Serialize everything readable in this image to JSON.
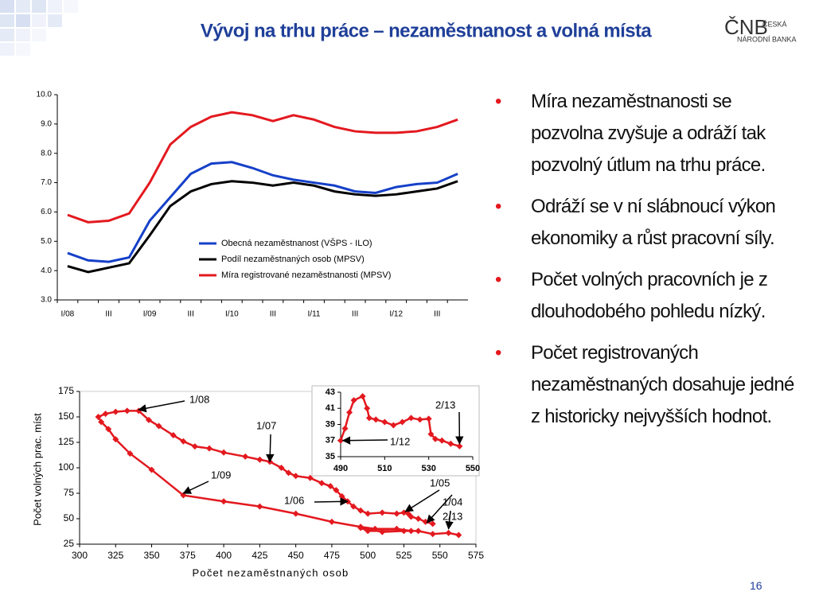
{
  "header": {
    "title": "Vývoj na trhu práce – nezaměstnanost a volná místa",
    "logo": "ČNB",
    "logo_line1": "ČESKÁ",
    "logo_line2": "NÁRODNÍ BANKA"
  },
  "chart_data": [
    {
      "type": "line",
      "categories": [
        "I/08",
        null,
        "III",
        null,
        "I/09",
        null,
        "III",
        null,
        "I/10",
        null,
        "III",
        null,
        "I/11",
        null,
        "III",
        null,
        "I/12",
        null,
        "III",
        null
      ],
      "series": [
        {
          "name": "Obecná nezaměstnanost (VŠPS - ILO)",
          "color": "#1540c8",
          "values": [
            4.6,
            4.35,
            4.3,
            4.45,
            5.7,
            6.5,
            7.3,
            7.65,
            7.7,
            7.5,
            7.25,
            7.1,
            7.0,
            6.9,
            6.7,
            6.65,
            6.85,
            6.95,
            7.0,
            7.3
          ]
        },
        {
          "name": "Podíl nezaměstnaných osob (MPSV)",
          "color": "#000000",
          "values": [
            4.15,
            3.95,
            4.1,
            4.25,
            5.2,
            6.2,
            6.7,
            6.95,
            7.05,
            7.0,
            6.9,
            7.0,
            6.9,
            6.7,
            6.6,
            6.55,
            6.6,
            6.7,
            6.8,
            7.05
          ]
        },
        {
          "name": "Míra registrované nezaměstnanosti (MPSV)",
          "color": "#e3191f",
          "values": [
            5.9,
            5.65,
            5.7,
            5.95,
            7.0,
            8.3,
            8.9,
            9.25,
            9.4,
            9.3,
            9.1,
            9.3,
            9.15,
            8.9,
            8.75,
            8.7,
            8.7,
            8.75,
            8.9,
            9.15
          ]
        }
      ],
      "ylim": [
        3,
        10
      ],
      "yticks": [
        {
          "value": 3,
          "label": "3.0"
        },
        {
          "value": 4,
          "label": "4.0"
        },
        {
          "value": 5,
          "label": "5.0"
        },
        {
          "value": 6,
          "label": "6.0"
        },
        {
          "value": 7,
          "label": "7.0"
        },
        {
          "value": 8,
          "label": "8.0"
        },
        {
          "value": 9,
          "label": "9.0"
        },
        {
          "value": 10,
          "label": "10.0"
        }
      ],
      "legend": "center-right",
      "grid": false
    },
    {
      "type": "scatter",
      "color": "#e3191f",
      "marker": "diamond",
      "connect": true,
      "xlabel": "Počet  nezaměstnaných osob",
      "ylabel": "Počet volných prac. míst",
      "x": [
        545,
        540,
        535,
        530,
        528,
        525,
        520,
        510,
        500,
        495,
        490,
        486,
        482,
        478,
        474,
        468,
        460,
        450,
        445,
        440,
        432,
        425,
        415,
        400,
        390,
        380,
        372,
        365,
        355,
        348,
        341,
        333,
        325,
        318,
        313,
        315,
        320,
        325,
        335,
        350,
        372,
        400,
        425,
        450,
        475,
        495,
        505,
        520,
        530,
        500,
        495,
        510,
        525,
        535,
        545,
        556,
        563
      ],
      "values": [
        45,
        47,
        50,
        52,
        55,
        56,
        55,
        56,
        55,
        58,
        62,
        67,
        72,
        78,
        82,
        85,
        90,
        92,
        95,
        100,
        106,
        108,
        111,
        115,
        119,
        121,
        126,
        132,
        141,
        147,
        156,
        156,
        155,
        153,
        150,
        145,
        138,
        128,
        114,
        98,
        73,
        67,
        62,
        55,
        47,
        42,
        40,
        40,
        38,
        38,
        41,
        37,
        38,
        38,
        35,
        36,
        34
      ],
      "xlim": [
        300,
        575
      ],
      "xticks": [
        300,
        325,
        350,
        375,
        400,
        425,
        450,
        475,
        500,
        525,
        550,
        575
      ],
      "ylim": [
        25,
        175
      ],
      "yticks": [
        25,
        50,
        75,
        100,
        125,
        150,
        175
      ],
      "annotations": [
        {
          "text": "1/08",
          "x": 341,
          "y": 157
        },
        {
          "text": "1/07",
          "x": 432,
          "y": 106
        },
        {
          "text": "1/09",
          "x": 372,
          "y": 75
        },
        {
          "text": "1/06",
          "x": 486,
          "y": 67
        },
        {
          "text": "1/05",
          "x": 526,
          "y": 57
        },
        {
          "text": "1/04",
          "x": 541,
          "y": 46
        },
        {
          "text": "2/13",
          "x": 556,
          "y": 40
        }
      ]
    },
    {
      "type": "scatter",
      "color": "#e3191f",
      "marker": "diamond",
      "connect": true,
      "x": [
        490,
        492,
        494,
        496,
        500,
        502,
        503,
        506,
        510,
        514,
        518,
        522,
        526,
        530,
        531,
        533,
        536,
        540,
        544
      ],
      "values": [
        37,
        38.5,
        40.5,
        42,
        42.5,
        41,
        39.8,
        39.6,
        39.3,
        38.9,
        39.3,
        39.8,
        39.6,
        39.7,
        37.8,
        37.2,
        37,
        36.6,
        36.3
      ],
      "xlim": [
        490,
        550
      ],
      "xticks": [
        490,
        510,
        530,
        550
      ],
      "ylim": [
        35,
        43
      ],
      "yticks": [
        35,
        37,
        39,
        41,
        43
      ],
      "annotations": [
        {
          "text": "2/13",
          "x": 544,
          "y": 36.6
        },
        {
          "text": "1/12",
          "x": 491,
          "y": 37
        }
      ]
    }
  ],
  "bullets": [
    "Míra nezaměstnanosti se pozvolna zvyšuje a odráží tak pozvolný útlum na trhu práce.",
    "Odráží se v ní slábnoucí výkon ekonomiky a růst pracovní síly.",
    "Počet volných pracovních je z dlouhodobého pohledu nízký.",
    "Počet registrovaných nezaměstnaných dosahuje jedné z historicky nejvyšších hodnot."
  ],
  "page_number": "16"
}
